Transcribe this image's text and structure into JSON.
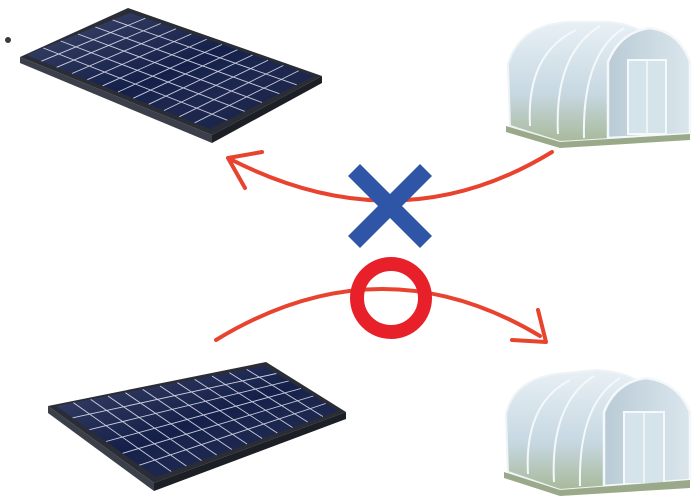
{
  "colors": {
    "background": "#ffffff",
    "arrow": "#e8432e",
    "cross_mark": "#2f55a6",
    "circle_mark": "#e8202a",
    "panel_cell": "#15204a",
    "panel_grid": "#c9cede",
    "panel_frame": "#2a2d35",
    "greenhouse_film": "#cfdde6",
    "greenhouse_frame": "#eef3f6"
  },
  "icons": {
    "top_left": "solar-panel-icon",
    "top_right": "greenhouse-icon",
    "bottom_left": "solar-panel-icon",
    "bottom_right": "greenhouse-icon",
    "incorrect_mark": "cross-mark-icon",
    "correct_mark": "circle-mark-icon"
  },
  "relations": [
    {
      "from": "greenhouse",
      "to": "solar-panel",
      "verdict": "incorrect"
    },
    {
      "from": "solar-panel",
      "to": "greenhouse",
      "verdict": "correct"
    }
  ]
}
